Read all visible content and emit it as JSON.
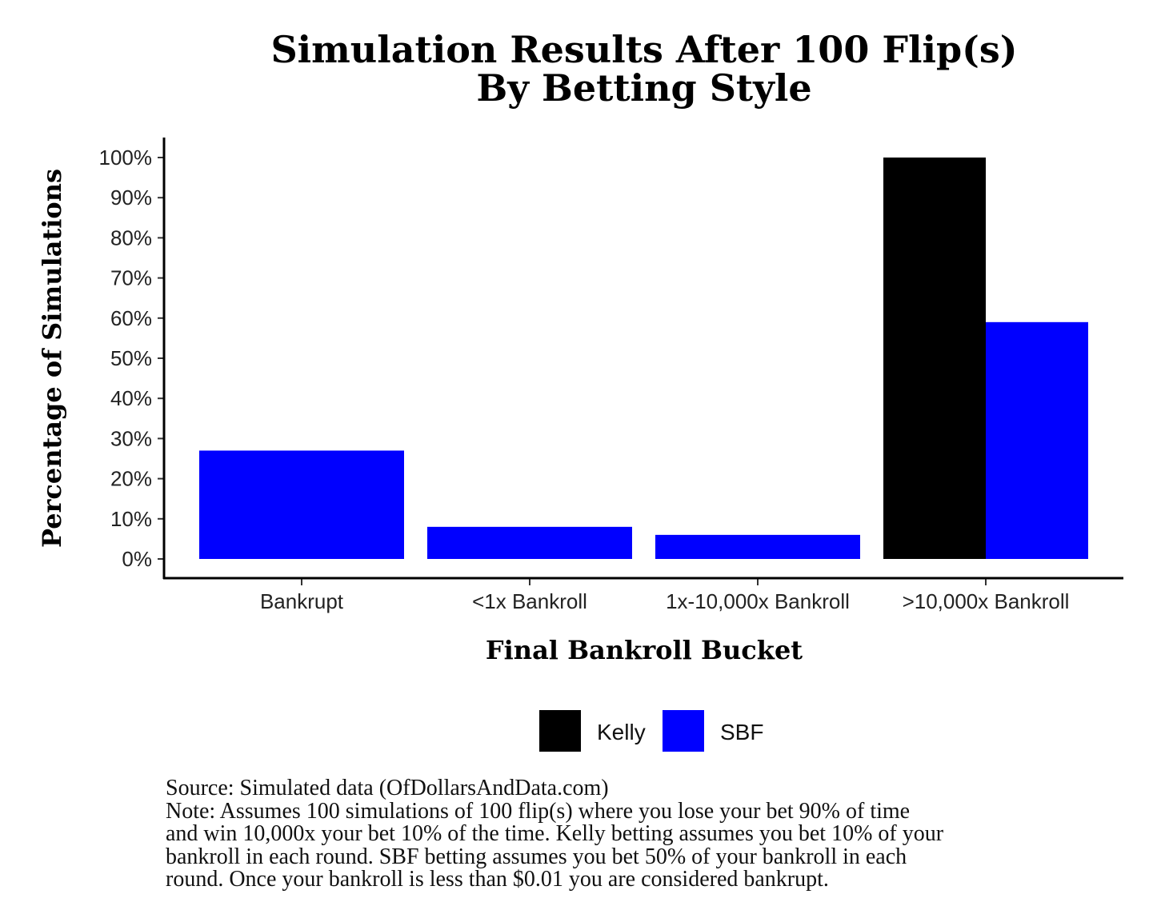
{
  "chart_data": {
    "type": "bar",
    "title": "Simulation Results After 100 Flip(s)",
    "subtitle": "By Betting Style",
    "xlabel": "Final Bankroll Bucket",
    "ylabel": "Percentage of Simulations",
    "categories": [
      "Bankrupt",
      "<1x Bankroll",
      "1x-10,000x Bankroll",
      ">10,000x Bankroll"
    ],
    "series": [
      {
        "name": "Kelly",
        "color": "#000000",
        "values": [
          0,
          0,
          0,
          100
        ]
      },
      {
        "name": "SBF",
        "color": "#0000ff",
        "values": [
          27,
          8,
          6,
          59
        ]
      }
    ],
    "ylim": [
      0,
      100
    ],
    "yticks": [
      {
        "value": 0,
        "label": "0%"
      },
      {
        "value": 10,
        "label": "10%"
      },
      {
        "value": 20,
        "label": "20%"
      },
      {
        "value": 30,
        "label": "30%"
      },
      {
        "value": 40,
        "label": "40%"
      },
      {
        "value": 50,
        "label": "50%"
      },
      {
        "value": 60,
        "label": "60%"
      },
      {
        "value": 70,
        "label": "70%"
      },
      {
        "value": 80,
        "label": "80%"
      },
      {
        "value": 90,
        "label": "90%"
      },
      {
        "value": 100,
        "label": "100%"
      }
    ],
    "grid": false,
    "legend_position": "bottom"
  },
  "caption": {
    "source": "Source:  Simulated data (OfDollarsAndData.com)",
    "note_lines": [
      "Note: Assumes 100 simulations of 100 flip(s) where you lose your bet 90% of time",
      "and win 10,000x your bet 10% of the time. Kelly betting assumes you bet 10% of your",
      "bankroll in each round. SBF betting assumes you bet 50% of your bankroll in each",
      "round. Once your bankroll is less than $0.01 you are considered bankrupt."
    ]
  }
}
